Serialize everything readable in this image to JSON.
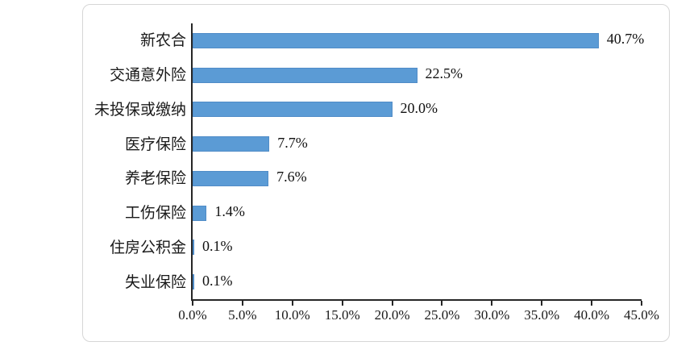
{
  "chart_data": {
    "type": "bar",
    "orientation": "horizontal",
    "title": "",
    "categories": [
      "新农合",
      "交通意外险",
      "未投保或缴纳",
      "医疗保险",
      "养老保险",
      "工伤保险",
      "住房公积金",
      "失业保险"
    ],
    "values": [
      40.7,
      22.5,
      20.0,
      7.7,
      7.6,
      1.4,
      0.1,
      0.1
    ],
    "value_labels": [
      "40.7%",
      "22.5%",
      "20.0%",
      "7.7%",
      "7.6%",
      "1.4%",
      "0.1%",
      "0.1%"
    ],
    "xlabel": "",
    "ylabel": "",
    "xlim": [
      0,
      45
    ],
    "xtick_labels": [
      "0.0%",
      "5.0%",
      "10.0%",
      "15.0%",
      "20.0%",
      "25.0%",
      "30.0%",
      "35.0%",
      "40.0%",
      "45.0%"
    ],
    "xtick_values": [
      0,
      5,
      10,
      15,
      20,
      25,
      30,
      35,
      40,
      45
    ],
    "grid": false,
    "legend": false,
    "bar_color": "#5b9bd5",
    "axis_color": "#262626",
    "text_color": "#1a1a1a",
    "panel_border_color": "#d6d6d6"
  }
}
